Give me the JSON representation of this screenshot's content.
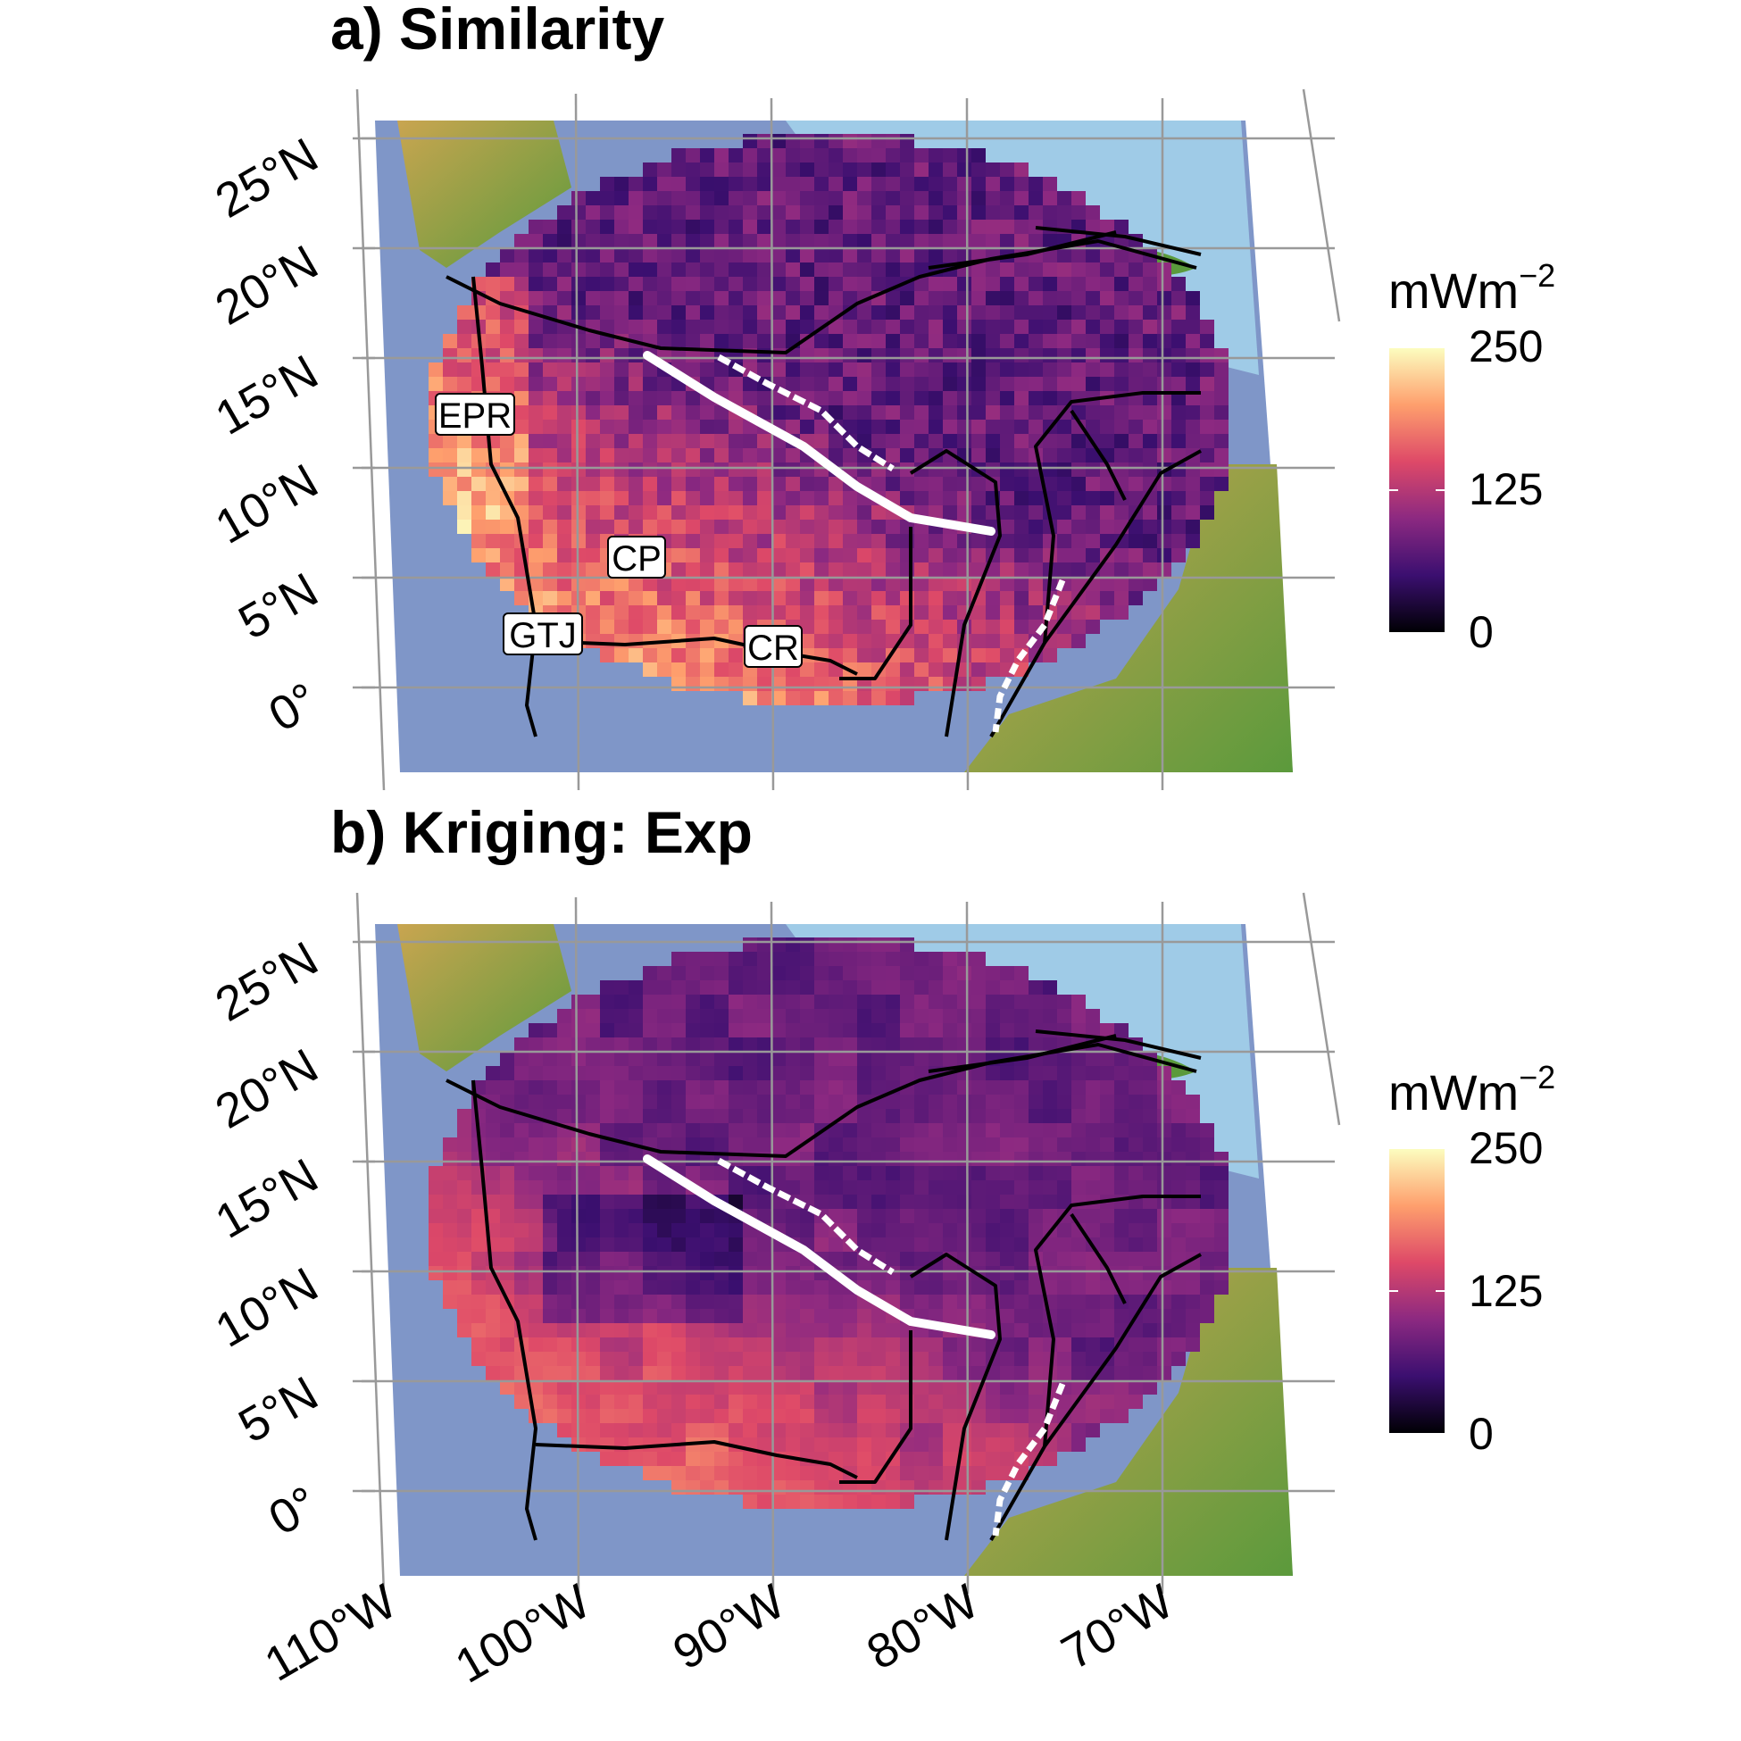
{
  "panels": [
    {
      "title": "a) Similarity",
      "field": "similarity"
    },
    {
      "title": "b) Kriging: Exp",
      "field": "kriging"
    }
  ],
  "axes": {
    "lat_labels": [
      "25°N",
      "20°N",
      "15°N",
      "10°N",
      "5°N",
      "0°"
    ],
    "lon_labels": [
      "110°W",
      "100°W",
      "90°W",
      "80°W",
      "70°W"
    ]
  },
  "legend": {
    "unit": "mWm",
    "unit_exponent": "−2",
    "ticks": [
      "250",
      "125",
      "0"
    ],
    "range": [
      0,
      250
    ],
    "colors": [
      "#000004",
      "#3b0f70",
      "#8c2981",
      "#de4968",
      "#fe9f6d",
      "#fcfdbf"
    ]
  },
  "region_labels": [
    "EPR",
    "CP",
    "GTJ",
    "CR"
  ],
  "colors": {
    "ocean_deep": "#7f96c8",
    "ocean_shallow": "#a8d8ef",
    "land_low": "#5b9a3c",
    "land_high": "#c9a550",
    "graticule": "#999999",
    "boundaries": "#000000",
    "arc": "#ffffff"
  }
}
